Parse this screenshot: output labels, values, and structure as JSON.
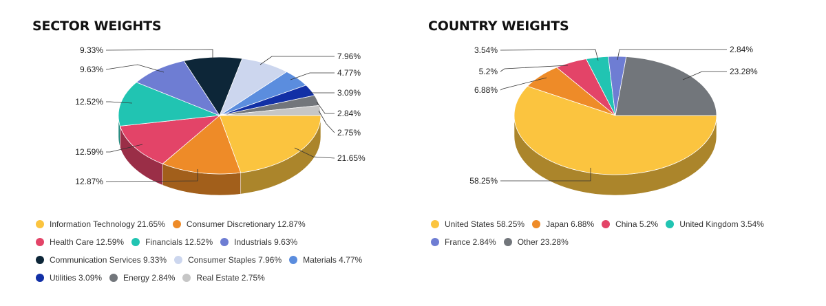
{
  "chart_data": [
    {
      "type": "pie",
      "title": "SECTOR WEIGHTS",
      "label_format": "{v}%",
      "slices": [
        {
          "name": "Information Technology",
          "value": 21.65,
          "color": "#FBC43F"
        },
        {
          "name": "Consumer Discretionary",
          "value": 12.87,
          "color": "#EE8B28"
        },
        {
          "name": "Health Care",
          "value": 12.59,
          "color": "#E34468"
        },
        {
          "name": "Financials",
          "value": 12.52,
          "color": "#21C4B2"
        },
        {
          "name": "Industrials",
          "value": 9.63,
          "color": "#6E7DD3"
        },
        {
          "name": "Communication Services",
          "value": 9.33,
          "color": "#0D2638"
        },
        {
          "name": "Consumer Staples",
          "value": 7.96,
          "color": "#CCD6EE"
        },
        {
          "name": "Materials",
          "value": 4.77,
          "color": "#5B8DDE"
        },
        {
          "name": "Utilities",
          "value": 3.09,
          "color": "#1230A6"
        },
        {
          "name": "Energy",
          "value": 2.84,
          "color": "#72767B"
        },
        {
          "name": "Real Estate",
          "value": 2.75,
          "color": "#C6C6C6"
        }
      ],
      "legend_rows": [
        [
          0,
          1
        ],
        [
          2,
          3,
          4
        ],
        [
          5,
          6,
          7
        ],
        [
          8,
          9,
          10
        ]
      ],
      "legend_placement": "bottom"
    },
    {
      "type": "pie",
      "title": "COUNTRY WEIGHTS",
      "label_format": "{v}%",
      "slices": [
        {
          "name": "United States",
          "value": 58.25,
          "color": "#FBC43F"
        },
        {
          "name": "Japan",
          "value": 6.88,
          "color": "#EE8B28"
        },
        {
          "name": "China",
          "value": 5.2,
          "color": "#E34468"
        },
        {
          "name": "United Kingdom",
          "value": 3.54,
          "color": "#21C4B2"
        },
        {
          "name": "France",
          "value": 2.84,
          "color": "#6E7DD3"
        },
        {
          "name": "Other",
          "value": 23.28,
          "color": "#72767B"
        }
      ],
      "legend_rows": [
        [
          0,
          1,
          2,
          3
        ],
        [
          4,
          5
        ]
      ],
      "legend_placement": "bottom"
    }
  ]
}
